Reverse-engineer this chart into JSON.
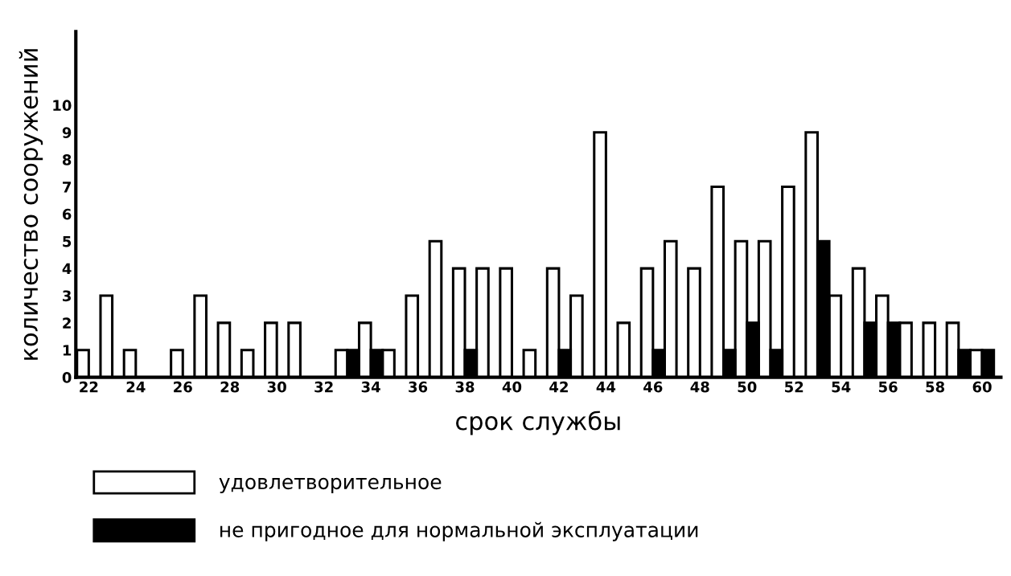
{
  "chart_data": {
    "type": "bar",
    "xlabel": "срок службы",
    "ylabel": "количество сооружений",
    "categories": [
      "22",
      null,
      "24",
      null,
      "26",
      null,
      "28",
      null,
      "30",
      null,
      "32",
      null,
      "34",
      null,
      "36",
      null,
      "38",
      null,
      "40",
      null,
      "42",
      null,
      "44",
      null,
      "46",
      null,
      "48",
      null,
      "50",
      null,
      "52",
      null,
      "54",
      null,
      "56",
      null,
      "58",
      null,
      "60"
    ],
    "series": [
      {
        "name": "удовлетворительное",
        "color": "#ffffff",
        "values": [
          1,
          3,
          1,
          0,
          1,
          3,
          2,
          1,
          2,
          2,
          0,
          1,
          2,
          1,
          3,
          5,
          4,
          4,
          4,
          1,
          4,
          3,
          9,
          2,
          4,
          5,
          4,
          7,
          5,
          5,
          7,
          9,
          3,
          4,
          3,
          2,
          2,
          2,
          1
        ]
      },
      {
        "name": "не пригодное для нормальной эксплуатации",
        "color": "#000000",
        "values": [
          0,
          0,
          0,
          0,
          0,
          0,
          0,
          0,
          0,
          0,
          0,
          1,
          1,
          0,
          0,
          0,
          1,
          0,
          0,
          0,
          1,
          0,
          0,
          0,
          1,
          0,
          0,
          1,
          2,
          1,
          0,
          5,
          0,
          2,
          2,
          0,
          0,
          1,
          1
        ]
      }
    ],
    "ylim": [
      0,
      12.7
    ],
    "yticks": [
      0,
      1,
      2,
      3,
      4,
      5,
      6,
      7,
      8,
      9,
      10
    ],
    "grid": false,
    "legend": "bottom"
  }
}
